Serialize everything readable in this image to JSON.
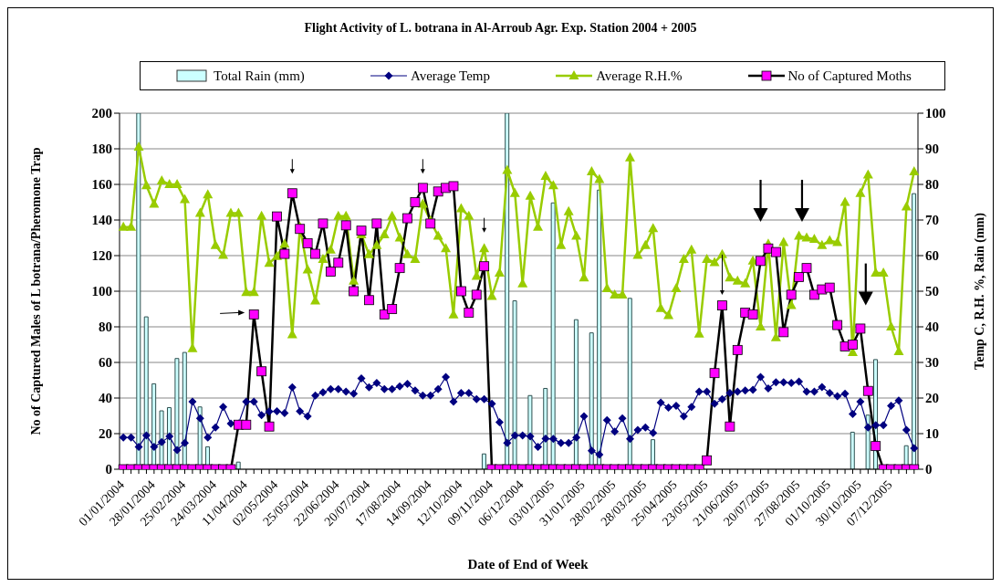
{
  "chart_data": {
    "type": "line",
    "title": "Flight Activity of L. botrana in Al-Arroub Agr. Exp. Station 2004 + 2005",
    "xlabel": "Date of End of Week",
    "ylabel": "No of Captured Males of L botrana/Pheromone Trap",
    "y2label": "Temp C, R.H. %, Rain (mm)",
    "categories": [
      "01/01/2004",
      null,
      null,
      null,
      "28/01/2004",
      null,
      null,
      null,
      "25/02/2004",
      null,
      null,
      null,
      "24/03/2004",
      null,
      null,
      null,
      "11/04/2004",
      null,
      null,
      null,
      "02/05/2004",
      null,
      null,
      null,
      "25/05/2004",
      null,
      null,
      null,
      "22/06/2004",
      null,
      null,
      null,
      "20/07/2004",
      null,
      null,
      null,
      "17/08/2004",
      null,
      null,
      null,
      "14/09/2004",
      null,
      null,
      null,
      "12/10/2004",
      null,
      null,
      null,
      "09/11/2004",
      null,
      null,
      null,
      "06/12/2004",
      null,
      null,
      null,
      "03/01/2005",
      null,
      null,
      null,
      "31/01/2005",
      null,
      null,
      null,
      "28/02/2005",
      null,
      null,
      null,
      "28/03/2005",
      null,
      null,
      null,
      "25/04/2005",
      null,
      null,
      null,
      "23/05/2005",
      null,
      null,
      null,
      "21/06/2005",
      null,
      null,
      null,
      "20/07/2005",
      null,
      null,
      null,
      "27/08/2005",
      null,
      null,
      null,
      "01/10/2005",
      null,
      null,
      null,
      "30/10/2005",
      null,
      null,
      null,
      "07/12/2005",
      null,
      null,
      null
    ],
    "series": [
      {
        "name": "Total Rain (mm)",
        "type": "bar",
        "axis": "y2",
        "color": "#ccffff",
        "values": [
          0,
          0,
          100,
          42.8,
          24,
          16.4,
          17.3,
          31.1,
          32.8,
          0,
          17.5,
          6.3,
          0,
          0,
          0,
          2,
          0,
          0,
          0,
          0,
          0,
          0,
          0,
          0,
          0,
          0,
          0,
          0,
          0,
          0,
          0,
          0,
          0,
          0,
          0,
          0,
          0,
          0,
          0,
          0,
          0,
          0,
          0,
          0,
          0,
          0,
          0,
          4.3,
          0,
          0,
          100,
          47.3,
          0,
          20.7,
          0,
          22.7,
          74.8,
          0,
          0,
          42,
          0,
          38.3,
          78.4,
          0,
          0,
          0,
          48,
          0,
          0,
          8.3,
          0,
          0,
          0,
          0,
          0,
          0,
          0,
          0,
          0,
          0,
          0,
          0,
          0,
          0,
          0,
          0,
          0,
          0,
          0,
          0,
          0,
          0,
          0,
          0,
          0,
          10.4,
          0,
          15.2,
          30.8,
          0,
          0,
          0,
          6.6,
          77.4
        ]
      },
      {
        "name": "Average Temp",
        "axis": "y2",
        "marker": "diamond",
        "color": "#000080",
        "values": [
          8.9,
          8.9,
          6.3,
          9.5,
          6.3,
          7.6,
          9.2,
          5.4,
          7.4,
          19,
          14.3,
          8.9,
          11.7,
          17.5,
          12.8,
          12.8,
          19,
          19,
          15.2,
          16.2,
          16.3,
          15.8,
          23,
          16.3,
          14.9,
          20.7,
          21.6,
          22.5,
          22.5,
          21.8,
          21.2,
          25.5,
          23,
          24.2,
          22.5,
          22.5,
          23.3,
          24,
          22.1,
          20.7,
          20.7,
          22.5,
          25.9,
          19,
          21.4,
          21.4,
          19.7,
          19.7,
          18.4,
          13.2,
          7.4,
          9.5,
          9.5,
          9.2,
          6.3,
          8.6,
          8.5,
          7.4,
          7.4,
          8.9,
          14.9,
          5.2,
          4.1,
          13.8,
          10.6,
          14.3,
          8.5,
          11,
          11.7,
          10.2,
          18.7,
          17.3,
          17.8,
          14.9,
          17.5,
          21.8,
          21.8,
          18.4,
          19.7,
          21.4,
          21.8,
          22.1,
          22.3,
          25.9,
          22.7,
          24.4,
          24.4,
          24.2,
          24.6,
          21.8,
          21.8,
          23.1,
          21.4,
          20.5,
          21.2,
          15.5,
          19,
          11.7,
          12.4,
          12.4,
          17.8,
          19.3,
          11,
          5.9
        ]
      },
      {
        "name": "Average R.H.%",
        "axis": "y2",
        "marker": "triangle",
        "color": "#99cc00",
        "values": [
          68,
          68,
          90.5,
          79.7,
          74.5,
          81,
          80,
          80,
          75.8,
          33.9,
          71.9,
          77.1,
          62.9,
          60.1,
          71.9,
          71.9,
          49.7,
          49.7,
          71.1,
          57.9,
          59.8,
          63.3,
          37.8,
          68,
          56,
          47.3,
          59,
          61.6,
          71.1,
          71.1,
          52.9,
          65.9,
          60.3,
          62.9,
          65.9,
          71.1,
          65,
          60.3,
          59,
          74.5,
          69.8,
          65.5,
          62,
          43.4,
          73.2,
          71.1,
          54.2,
          62,
          48.6,
          55.1,
          84,
          77.5,
          52.1,
          76.7,
          68,
          82.3,
          79.7,
          62.9,
          72.4,
          65.5,
          53.8,
          83.6,
          81.4,
          50.8,
          49,
          49,
          87.5,
          60.1,
          62.9,
          67.6,
          45.2,
          43.2,
          50.8,
          59,
          61.6,
          38,
          59,
          58.1,
          60.3,
          53.8,
          52.9,
          52.1,
          58.5,
          40,
          63.3,
          37,
          63.7,
          46,
          65.5,
          65,
          64.6,
          62.9,
          64.2,
          63.7,
          75,
          32.8,
          77.5,
          82.7,
          55.1,
          55.1,
          40,
          33.1,
          73.7,
          83.6
        ]
      },
      {
        "name": "No of Captured Moths",
        "axis": "y",
        "marker": "square",
        "color": "#000000",
        "colors": [
          "#ff00ff",
          "#ff00ff",
          "#ff00ff",
          "#ff00ff",
          "#ff00ff",
          "#ff00ff",
          "#ff00ff",
          "#ff00ff",
          "#ff00ff",
          "#ff00ff",
          "#ff00ff",
          "#ff00ff",
          "#ff00ff",
          "#ff00ff",
          "#ff00ff",
          "#ff00ff",
          "#ff00ff",
          "#ff00ff",
          "#ff00ff",
          "#ff00ff",
          "#ff00ff",
          "#ff00ff",
          "#ff00ff",
          "#ff00ff",
          "#ff00ff",
          "#ff00ff",
          "#ff00ff",
          "#ff00ff",
          "#ff00ff",
          "#ff00ff",
          "#ff00ff",
          "#ff00ff",
          "#ff00ff",
          "#ff00ff",
          "#ff00ff",
          "#ff00ff",
          "#ff00ff",
          "#ff00ff",
          "#ff00ff",
          "#ff00ff",
          "#ff00ff",
          "#ff00ff",
          "#ff00ff",
          "#ff00ff",
          "#ff00ff",
          "#ff00ff",
          "#ff00ff",
          "#ff00ff",
          "#ff00ff",
          "#ff00ff",
          "#ff00ff",
          "#ff00ff",
          "#ff00ff",
          "#ff00ff",
          "#ff00ff",
          "#ff00ff",
          "#ff00ff",
          "#ff00ff",
          "#ff00ff",
          "#ff00ff",
          "#ff00ff",
          "#ff00ff",
          "#ff00ff",
          "#ff00ff",
          "#ff00ff",
          "#ff00ff",
          "#ff00ff",
          "#ff00ff",
          "#ff00ff",
          "#ff00ff",
          "#ff00ff",
          "#ff00ff",
          "#ff00ff",
          "#ff00ff",
          "#ff00ff",
          "#ff00ff",
          "#ff00ff",
          "#ff00ff",
          "#ff00ff",
          "#ff00ff",
          "#ff00ff",
          "#ff00ff",
          "#ff00ff",
          "#ff00ff",
          "#ff00ff",
          "#ff00ff",
          "#ff00ff",
          "#ff00ff",
          "#ff00ff",
          "#ff00ff",
          "#ff00ff",
          "#ff00ff",
          "#ff00ff",
          "#ff00ff",
          "#ff00ff",
          "#ff00ff",
          "#ff00ff",
          "#ff00ff",
          "#ff00ff",
          "#ff00ff",
          "#ff00ff",
          "#ff00ff",
          "#ff00ff",
          "#ff00ff"
        ],
        "values": [
          0,
          0,
          0,
          0,
          0,
          0,
          0,
          0,
          0,
          0,
          0,
          0,
          0,
          0,
          0,
          25,
          25,
          87,
          55,
          24,
          142,
          121,
          155,
          135,
          127,
          121,
          138,
          111,
          116,
          137,
          100,
          134,
          95,
          138,
          87,
          90,
          113,
          141,
          150,
          158,
          138,
          156,
          158,
          159,
          100,
          88,
          98,
          114,
          0,
          0,
          0,
          0,
          0,
          0,
          0,
          0,
          0,
          0,
          0,
          0,
          0,
          0,
          0,
          0,
          0,
          0,
          0,
          0,
          0,
          0,
          0,
          0,
          0,
          0,
          0,
          0,
          5,
          54,
          92,
          24,
          67,
          88,
          87,
          117,
          124,
          122,
          77,
          98,
          108,
          113,
          98,
          101,
          102,
          81,
          69,
          70,
          79,
          44,
          13,
          0,
          0,
          0,
          0,
          0
        ]
      }
    ],
    "ylim": [
      0,
      200
    ],
    "yticks": [
      0,
      20,
      40,
      60,
      80,
      100,
      120,
      140,
      160,
      180,
      200
    ],
    "y2lim": [
      0,
      100
    ],
    "y2ticks": [
      0,
      10,
      20,
      30,
      40,
      50,
      60,
      70,
      80,
      90,
      100
    ],
    "grid": "y",
    "legend": "top"
  }
}
